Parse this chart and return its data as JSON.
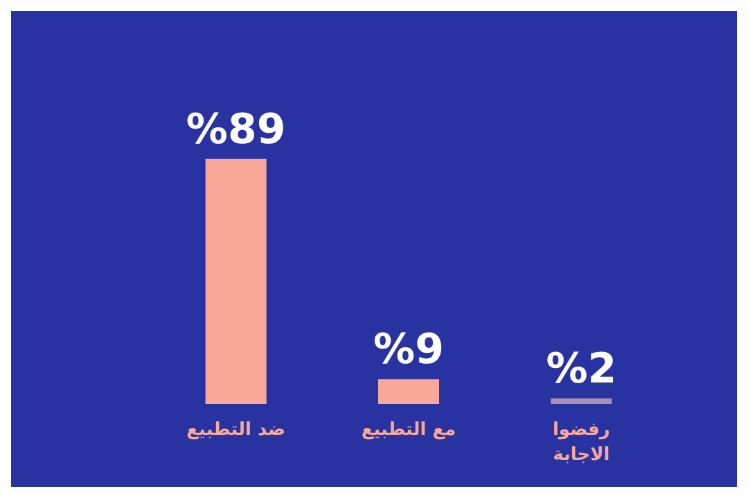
{
  "chart_data": {
    "type": "bar",
    "categories": [
      "ضد التطبيع",
      "مع التطبيع",
      "رفضوا الاجابة"
    ],
    "values": [
      89,
      9,
      2
    ],
    "colors": [
      "#f9a897",
      "#f9a897",
      "#a98fb0"
    ],
    "value_labels": [
      "%89",
      "%9",
      "%2"
    ],
    "grid": false
  }
}
